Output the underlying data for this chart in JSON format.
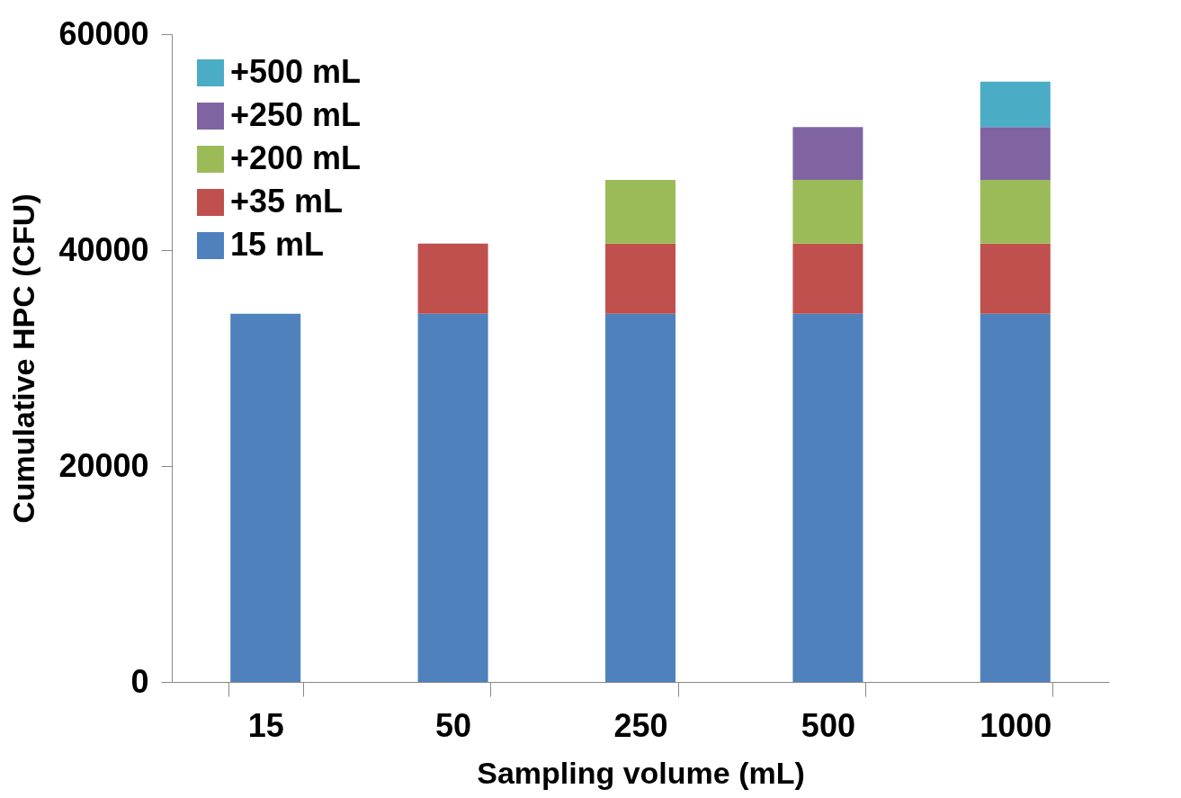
{
  "chart_data": {
    "type": "bar",
    "stacked": true,
    "xlabel": "Sampling volume (mL)",
    "ylabel": "Cumulative HPC (CFU)",
    "categories": [
      "15",
      "50",
      "250",
      "500",
      "1000"
    ],
    "series": [
      {
        "name": "15 mL",
        "color": "#4f81bd",
        "values": [
          34100,
          34100,
          34100,
          34100,
          34100
        ]
      },
      {
        "name": "+35 mL",
        "color": "#c0504d",
        "values": [
          null,
          6500,
          6500,
          6500,
          6500
        ]
      },
      {
        "name": "+200 mL",
        "color": "#9bbb59",
        "values": [
          null,
          null,
          5900,
          5900,
          5900
        ]
      },
      {
        "name": "+250 mL",
        "color": "#8064a2",
        "values": [
          null,
          null,
          null,
          4900,
          4900
        ]
      },
      {
        "name": "+500 mL",
        "color": "#4bacc6",
        "values": [
          null,
          null,
          null,
          null,
          4200
        ]
      }
    ],
    "ylim": [
      0,
      60000
    ],
    "yticks": [
      0,
      20000,
      40000,
      60000
    ],
    "grid": false,
    "legend": "top left"
  }
}
